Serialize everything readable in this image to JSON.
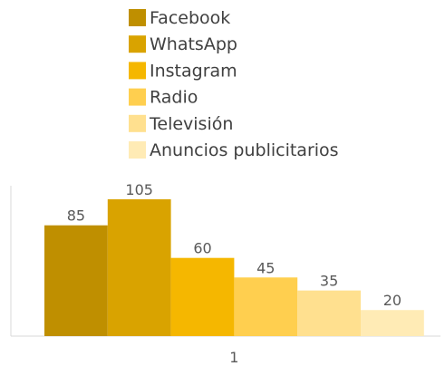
{
  "chart_data": {
    "type": "bar",
    "categories": [
      "1"
    ],
    "series": [
      {
        "name": "Facebook",
        "values": [
          85
        ],
        "color": "#BF8F00"
      },
      {
        "name": "WhatsApp",
        "values": [
          105
        ],
        "color": "#D9A300"
      },
      {
        "name": "Instagram",
        "values": [
          60
        ],
        "color": "#F5B700"
      },
      {
        "name": "Radio",
        "values": [
          45
        ],
        "color": "#FFCF4F"
      },
      {
        "name": "Televisión",
        "values": [
          35
        ],
        "color": "#FFE08F"
      },
      {
        "name": "Anuncios publicitarios",
        "values": [
          20
        ],
        "color": "#FFEBB5"
      }
    ],
    "legend_position": "top",
    "gridlines": false,
    "data_labels": true,
    "ylim": [
      0,
      120
    ]
  }
}
